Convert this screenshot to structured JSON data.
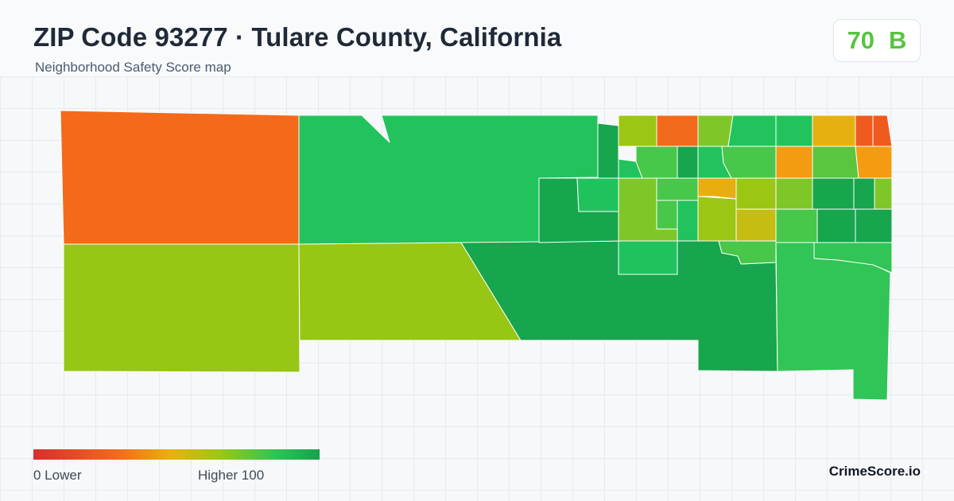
{
  "header": {
    "title": "ZIP Code 93277 · Tulare County, California",
    "subtitle": "Neighborhood Safety Score map"
  },
  "score": {
    "value": "70",
    "grade": "B",
    "color": "#58c341"
  },
  "legend": {
    "min_label": "0  Lower",
    "max_label": "Higher  100",
    "gradient": [
      "#d92d2d",
      "#f26c1d",
      "#e9b10c",
      "#9cc812",
      "#2cc456",
      "#15a24c"
    ]
  },
  "brand": "CrimeScore.io",
  "palette": {
    "orange": "#f26a1b",
    "light_orange": "#f39c12",
    "amber": "#e6b10e",
    "olive": "#c5bd12",
    "yellow_green": "#9bc613",
    "lime": "#7cc72a",
    "green": "#47c84a",
    "bright_green": "#22c35c",
    "dark_green": "#17a54d"
  }
}
